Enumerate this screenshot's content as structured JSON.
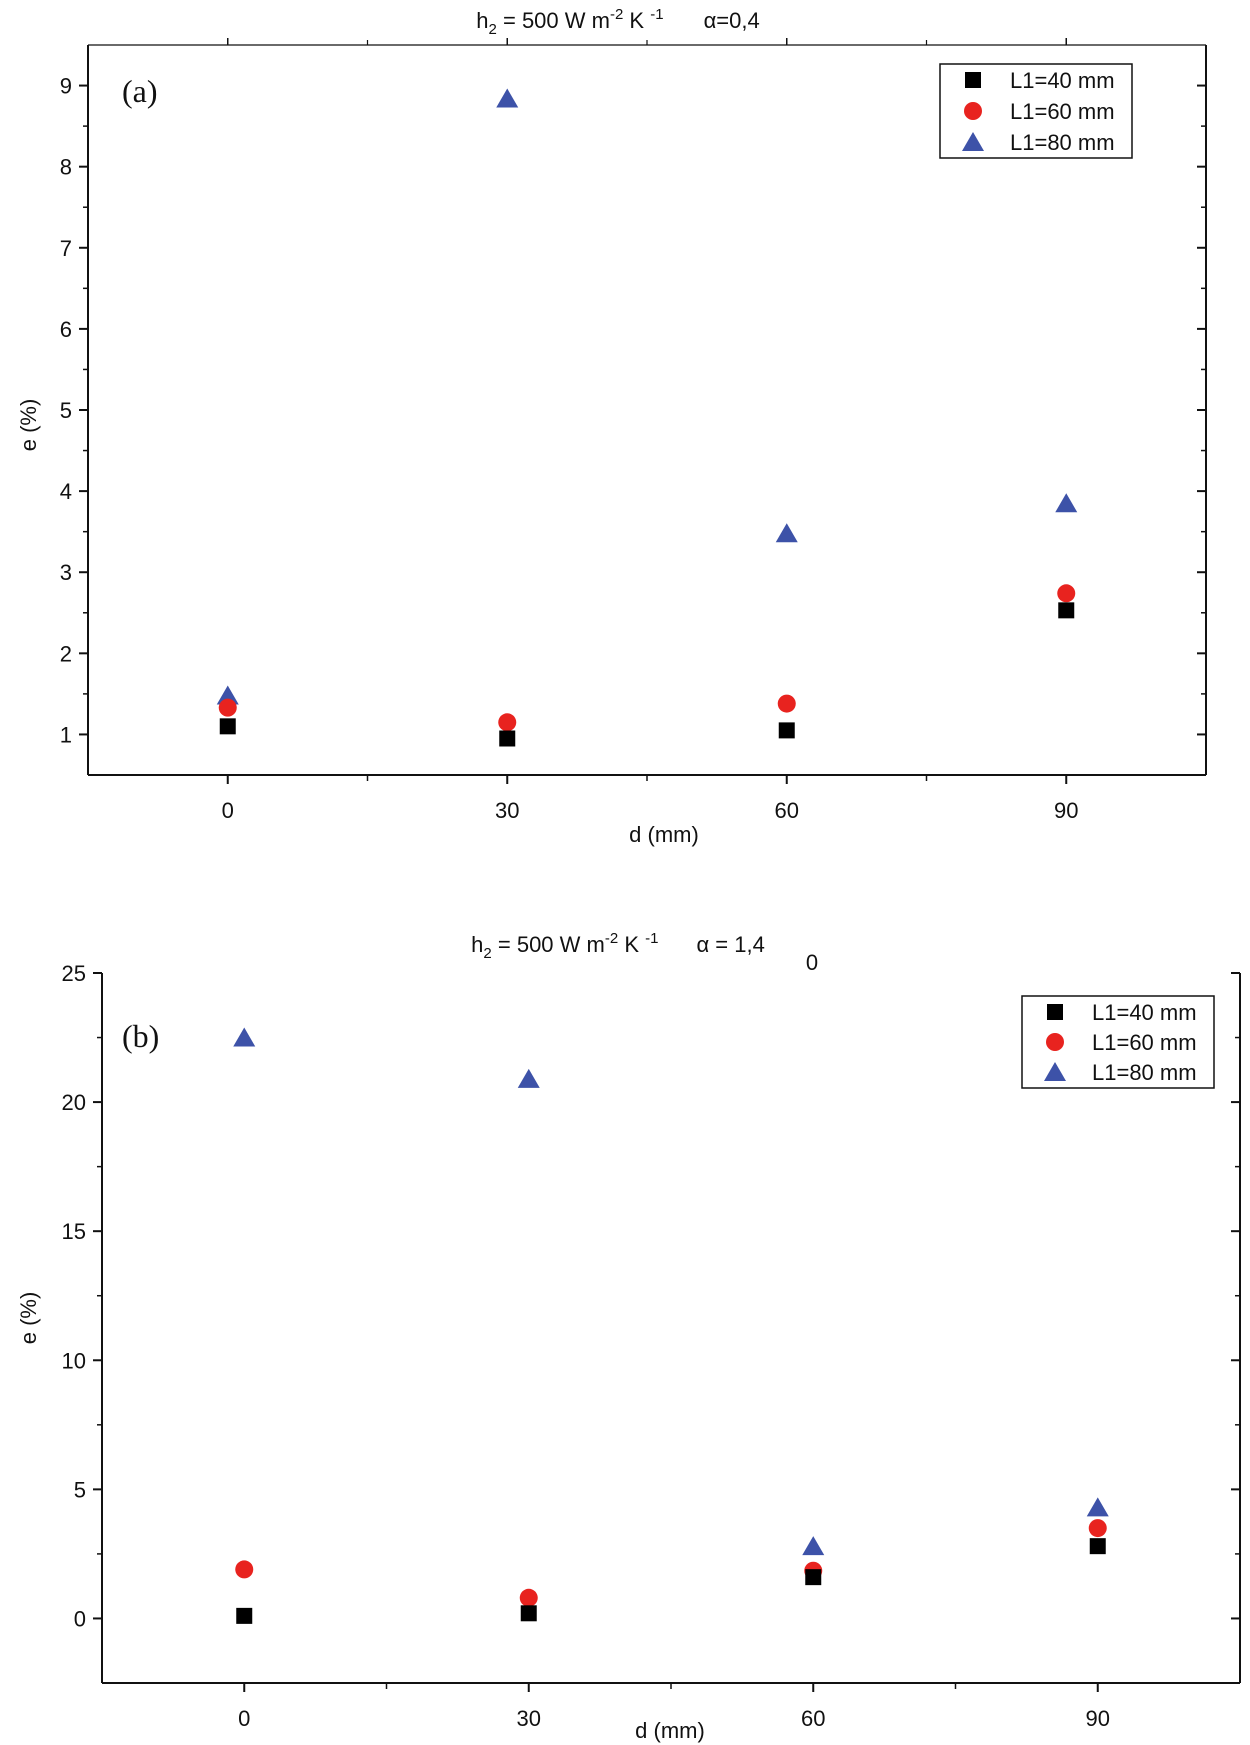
{
  "colors": {
    "l1_40": "#000000",
    "l1_60": "#e8231f",
    "l1_80": "#3d52a8",
    "axis": "#111111"
  },
  "chart_data": [
    {
      "type": "scatter",
      "panel_label": "(a)",
      "title": {
        "h_sym": "h",
        "h_sub": "2",
        "mid": " = 500 W m",
        "exp1": "-2",
        "unit_k": " K ",
        "exp2": "-1",
        "alpha": "α=0,4"
      },
      "xlabel": "d (mm)",
      "ylabel": "e (%)",
      "xlim": [
        -15,
        105
      ],
      "ylim": [
        0.5,
        9.5
      ],
      "x_ticks": [
        0,
        30,
        60,
        90
      ],
      "x_tick_labels": [
        "0",
        "30",
        "60",
        "90"
      ],
      "x_minor_ticks": [
        15,
        45,
        75
      ],
      "y_ticks": [
        1,
        2,
        3,
        4,
        5,
        6,
        7,
        8,
        9
      ],
      "y_tick_labels": [
        "1",
        "2",
        "3",
        "4",
        "5",
        "6",
        "7",
        "8",
        "9"
      ],
      "legend_position": "top-right",
      "x": [
        0,
        30,
        60,
        90
      ],
      "series": [
        {
          "name": "L1=40 mm",
          "marker": "square",
          "values": [
            1.1,
            0.95,
            1.05,
            2.53
          ]
        },
        {
          "name": "L1=60 mm",
          "marker": "circle",
          "values": [
            1.33,
            1.15,
            1.38,
            2.74
          ]
        },
        {
          "name": "L1=80 mm",
          "marker": "triangle",
          "values": [
            1.48,
            8.84,
            3.48,
            3.85
          ]
        }
      ]
    },
    {
      "type": "scatter",
      "panel_label": "(b)",
      "title": {
        "h_sym": "h",
        "h_sub": "2",
        "mid": " = 500 W m",
        "exp1": "-2",
        "unit_k": " K ",
        "exp2": "-1",
        "alpha": "α = 1,4"
      },
      "stray_text": "0",
      "xlabel": "d (mm)",
      "ylabel": "e (%)",
      "xlim": [
        -15,
        105
      ],
      "ylim": [
        -2.5,
        25
      ],
      "x_ticks": [
        0,
        30,
        60,
        90
      ],
      "x_tick_labels": [
        "0",
        "30",
        "60",
        "90"
      ],
      "x_minor_ticks": [
        15,
        45,
        75
      ],
      "y_ticks": [
        0,
        5,
        10,
        15,
        20,
        25
      ],
      "y_tick_labels": [
        "0",
        "5",
        "10",
        "15",
        "20",
        "25"
      ],
      "legend_position": "top-right",
      "x": [
        0,
        30,
        60,
        90
      ],
      "series": [
        {
          "name": "L1=40 mm",
          "marker": "square",
          "values": [
            0.1,
            0.2,
            1.6,
            2.8
          ]
        },
        {
          "name": "L1=60 mm",
          "marker": "circle",
          "values": [
            1.9,
            0.8,
            1.85,
            3.5
          ]
        },
        {
          "name": "L1=80 mm",
          "marker": "triangle",
          "values": [
            22.5,
            20.9,
            2.8,
            4.3
          ]
        }
      ]
    }
  ]
}
